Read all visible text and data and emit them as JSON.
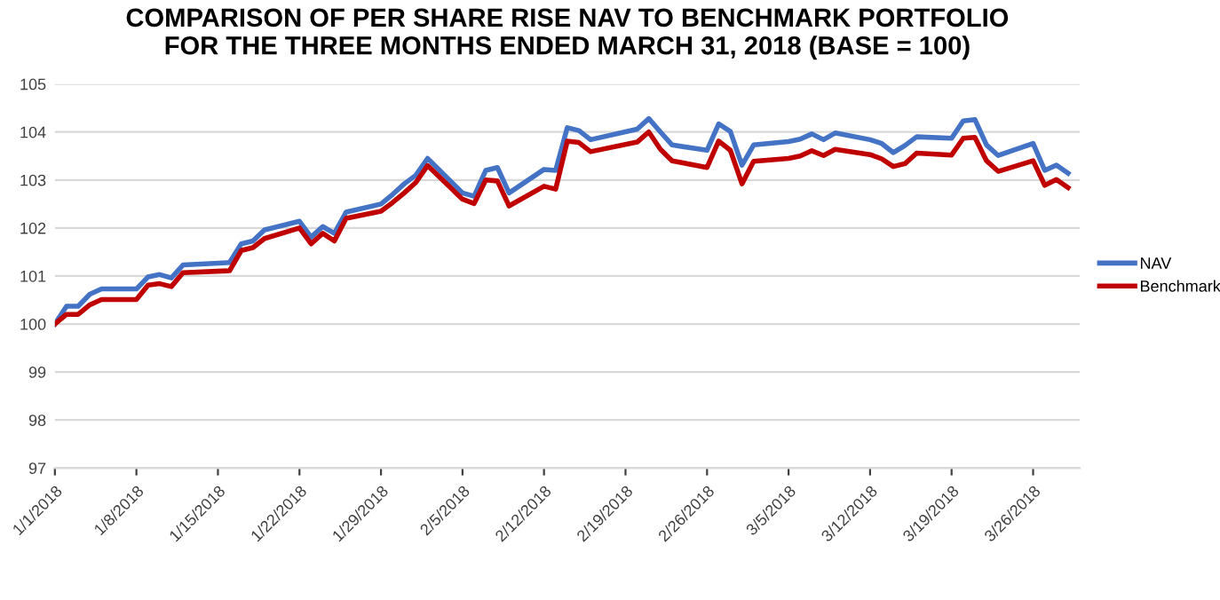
{
  "chart_data": {
    "type": "line",
    "title": "COMPARISON OF PER SHARE RISE NAV TO BENCHMARK PORTFOLIO\nFOR THE THREE MONTHS ENDED MARCH 31, 2018 (BASE = 100)",
    "x": [
      "2018-01-01",
      "2018-01-02",
      "2018-01-03",
      "2018-01-04",
      "2018-01-05",
      "2018-01-08",
      "2018-01-09",
      "2018-01-10",
      "2018-01-11",
      "2018-01-12",
      "2018-01-16",
      "2018-01-17",
      "2018-01-18",
      "2018-01-19",
      "2018-01-22",
      "2018-01-23",
      "2018-01-24",
      "2018-01-25",
      "2018-01-26",
      "2018-01-29",
      "2018-01-30",
      "2018-01-31",
      "2018-02-01",
      "2018-02-02",
      "2018-02-05",
      "2018-02-06",
      "2018-02-07",
      "2018-02-08",
      "2018-02-09",
      "2018-02-12",
      "2018-02-13",
      "2018-02-14",
      "2018-02-15",
      "2018-02-16",
      "2018-02-20",
      "2018-02-21",
      "2018-02-22",
      "2018-02-23",
      "2018-02-26",
      "2018-02-27",
      "2018-02-28",
      "2018-03-01",
      "2018-03-02",
      "2018-03-05",
      "2018-03-06",
      "2018-03-07",
      "2018-03-08",
      "2018-03-09",
      "2018-03-12",
      "2018-03-13",
      "2018-03-14",
      "2018-03-15",
      "2018-03-16",
      "2018-03-19",
      "2018-03-20",
      "2018-03-21",
      "2018-03-22",
      "2018-03-23",
      "2018-03-26",
      "2018-03-27",
      "2018-03-28",
      "2018-03-29"
    ],
    "series": [
      {
        "name": "NAV",
        "color": "#4472c4",
        "values": [
          100,
          100.37,
          100.37,
          100.62,
          100.73,
          100.73,
          100.98,
          101.03,
          100.96,
          101.23,
          101.28,
          101.67,
          101.73,
          101.96,
          102.14,
          101.81,
          102.03,
          101.89,
          102.33,
          102.5,
          102.7,
          102.92,
          103.1,
          103.45,
          102.73,
          102.66,
          103.2,
          103.26,
          102.73,
          103.22,
          103.2,
          104.09,
          104.03,
          103.84,
          104.06,
          104.28,
          104.0,
          103.73,
          103.62,
          104.17,
          104.01,
          103.31,
          103.73,
          103.8,
          103.85,
          103.96,
          103.84,
          103.98,
          103.84,
          103.76,
          103.57,
          103.72,
          103.9,
          103.87,
          104.23,
          104.26,
          103.73,
          103.51,
          103.76,
          103.2,
          103.31,
          103.14
        ]
      },
      {
        "name": "Benchmark",
        "color": "#c00000",
        "values": [
          100,
          100.2,
          100.2,
          100.4,
          100.51,
          100.51,
          100.81,
          100.84,
          100.78,
          101.07,
          101.11,
          101.53,
          101.59,
          101.78,
          102.0,
          101.67,
          101.89,
          101.73,
          102.2,
          102.35,
          102.53,
          102.73,
          102.95,
          103.3,
          102.6,
          102.51,
          103.0,
          102.98,
          102.46,
          102.87,
          102.81,
          103.81,
          103.78,
          103.59,
          103.79,
          104.0,
          103.64,
          103.4,
          103.26,
          103.81,
          103.62,
          102.92,
          103.39,
          103.45,
          103.5,
          103.61,
          103.51,
          103.64,
          103.53,
          103.44,
          103.28,
          103.34,
          103.56,
          103.52,
          103.87,
          103.89,
          103.4,
          103.18,
          103.4,
          102.89,
          103.01,
          102.84
        ]
      }
    ],
    "xlim": [
      "2018-01-01",
      "2018-03-30"
    ],
    "xticks": [
      {
        "value": "2018-01-01",
        "label": "1/1/2018"
      },
      {
        "value": "2018-01-08",
        "label": "1/8/2018"
      },
      {
        "value": "2018-01-15",
        "label": "1/15/2018"
      },
      {
        "value": "2018-01-22",
        "label": "1/22/2018"
      },
      {
        "value": "2018-01-29",
        "label": "1/29/2018"
      },
      {
        "value": "2018-02-05",
        "label": "2/5/2018"
      },
      {
        "value": "2018-02-12",
        "label": "2/12/2018"
      },
      {
        "value": "2018-02-19",
        "label": "2/19/2018"
      },
      {
        "value": "2018-02-26",
        "label": "2/26/2018"
      },
      {
        "value": "2018-03-05",
        "label": "3/5/2018"
      },
      {
        "value": "2018-03-12",
        "label": "3/12/2018"
      },
      {
        "value": "2018-03-19",
        "label": "3/19/2018"
      },
      {
        "value": "2018-03-26",
        "label": "3/26/2018"
      }
    ],
    "ylim": [
      97,
      105
    ],
    "yticks": [
      97,
      98,
      99,
      100,
      101,
      102,
      103,
      104,
      105
    ],
    "grid": "y",
    "legend": "right",
    "marker": "none",
    "line_style": "solid"
  }
}
